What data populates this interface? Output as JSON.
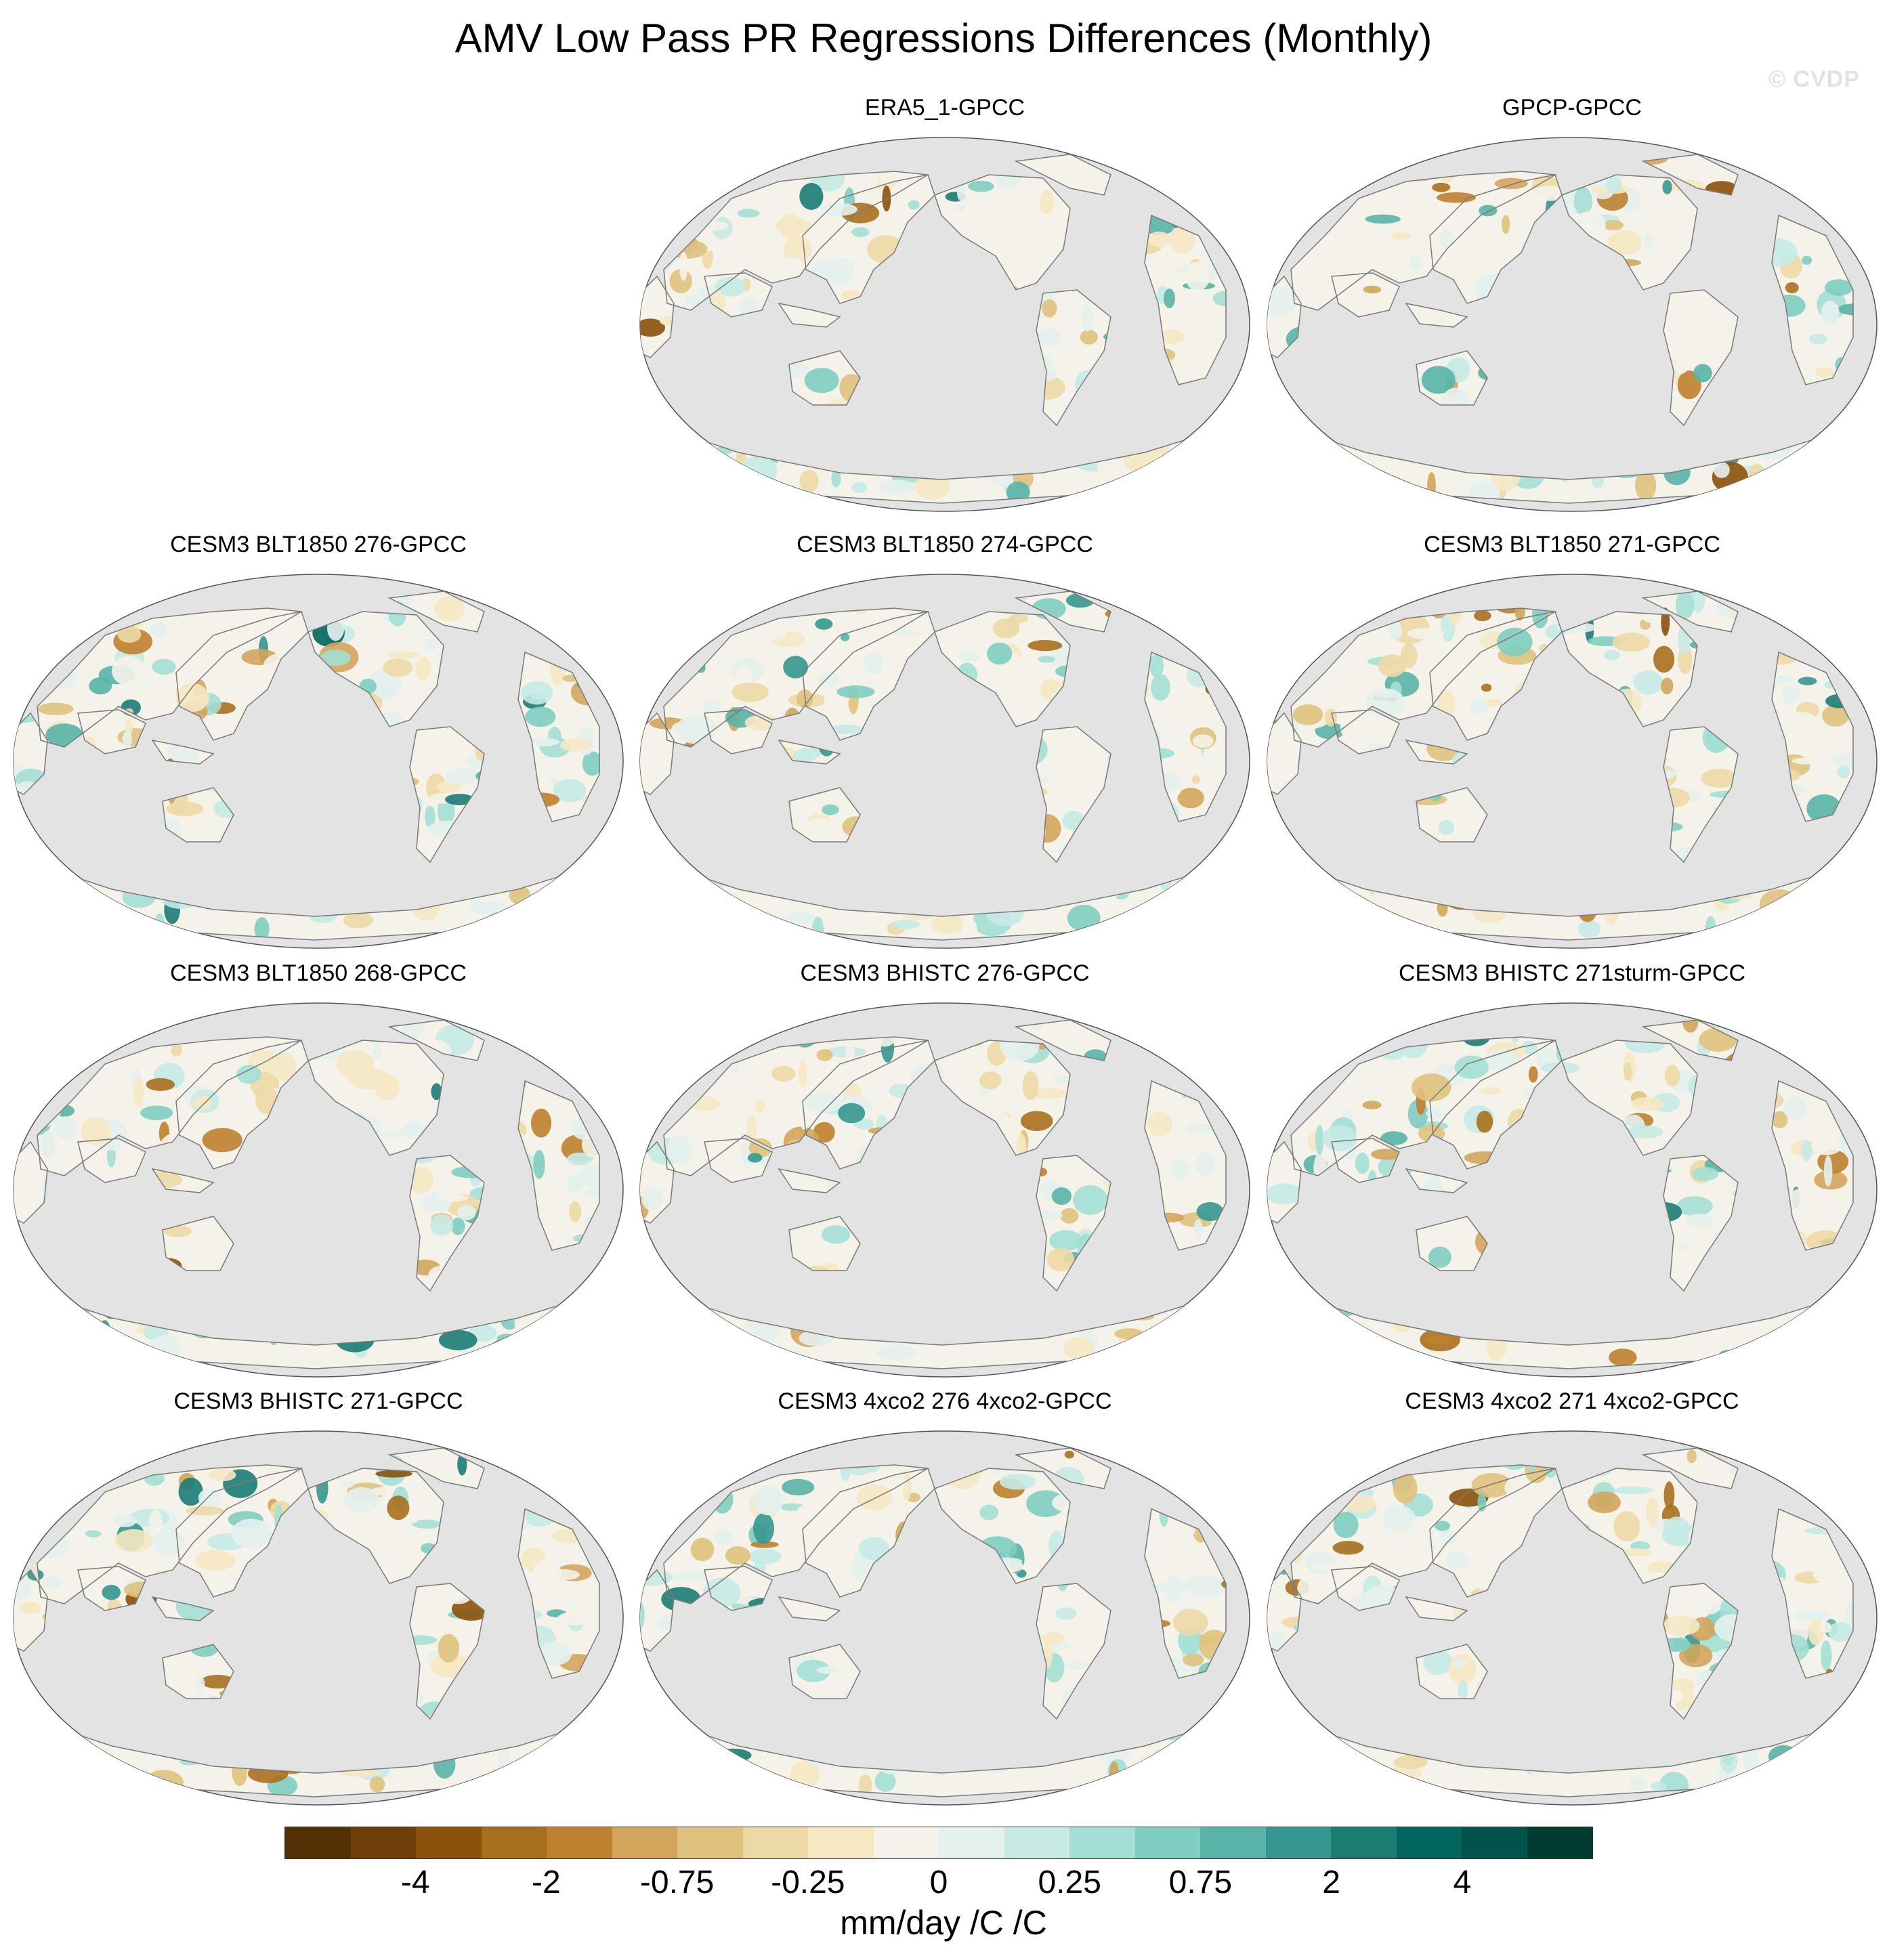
{
  "title": "AMV Low Pass PR Regressions Differences (Monthly)",
  "watermark": "© CVDP",
  "panels": [
    {
      "title": "ERA5_1-GPCC"
    },
    {
      "title": "GPCP-GPCC"
    },
    {
      "title": "CESM3 BLT1850 276-GPCC"
    },
    {
      "title": "CESM3 BLT1850 274-GPCC"
    },
    {
      "title": "CESM3 BLT1850 271-GPCC"
    },
    {
      "title": "CESM3 BLT1850 268-GPCC"
    },
    {
      "title": "CESM3 BHISTC 276-GPCC"
    },
    {
      "title": "CESM3 BHISTC 271sturm-GPCC"
    },
    {
      "title": "CESM3 BHISTC 271-GPCC"
    },
    {
      "title": "CESM3 4xco2 276 4xco2-GPCC"
    },
    {
      "title": "CESM3 4xco2 271 4xco2-GPCC"
    }
  ],
  "colorbar": {
    "colors": [
      "#543005",
      "#6e3f0a",
      "#8c510a",
      "#a8701e",
      "#bf812d",
      "#d3a55c",
      "#dfc27d",
      "#edd9a6",
      "#f6e8c3",
      "#f5f2ea",
      "#e4f1ee",
      "#c7eae5",
      "#a3dfd5",
      "#80cdc1",
      "#5ab4a7",
      "#35978f",
      "#1b7c74",
      "#01665e",
      "#00544a",
      "#003c30"
    ],
    "labels": [
      "-4",
      "-2",
      "-0.75",
      "-0.25",
      "0",
      "0.25",
      "0.75",
      "2",
      "4"
    ],
    "units": "mm/day /C /C"
  },
  "map_colors": {
    "ocean": "#e3e3e3",
    "coast": "#7a7a7a"
  }
}
